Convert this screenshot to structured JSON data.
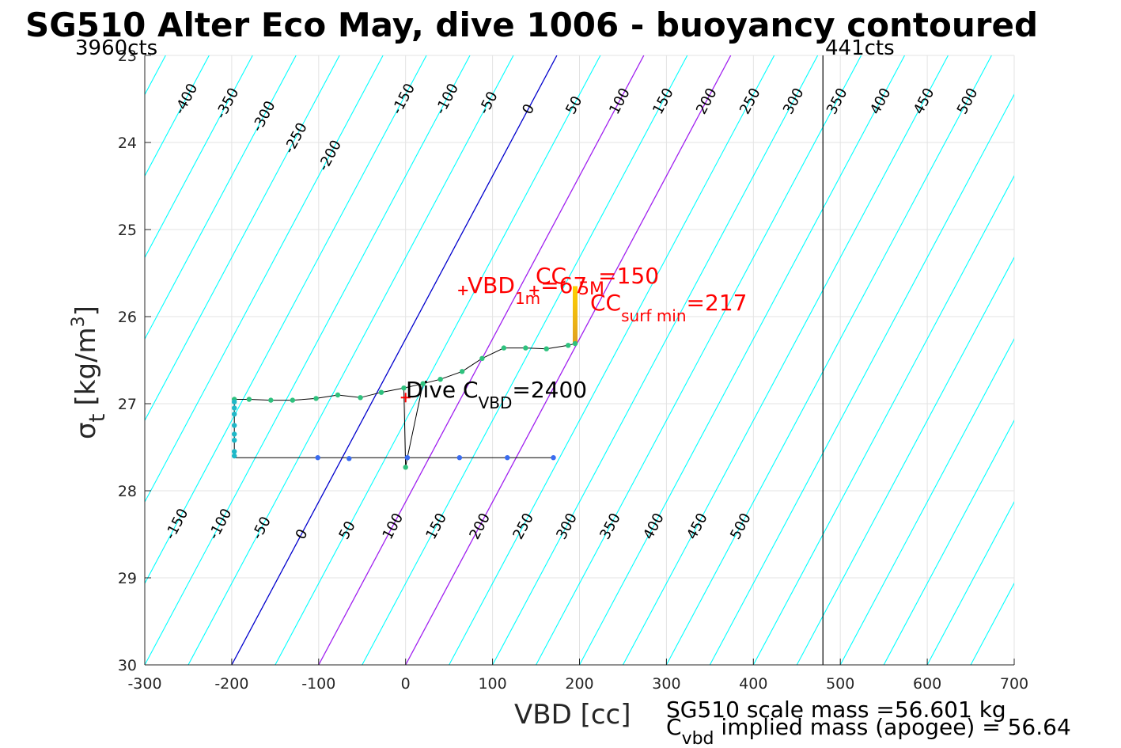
{
  "chart_data": {
    "type": "scatter",
    "title": "SG510 Alter Eco May, dive 1006 - buoyancy contoured",
    "xlabel": "VBD [cc]",
    "ylabel_symbol": "σ",
    "ylabel_sub": "t",
    "ylabel_unit": "[kg/m",
    "ylabel_sup": "3",
    "ylabel_close": "]",
    "xlim": [
      -300,
      700
    ],
    "ylim": [
      23,
      30
    ],
    "y_reversed": true,
    "grid": true,
    "xticks": [
      "-300",
      "-200",
      "-100",
      "0",
      "100",
      "200",
      "300",
      "400",
      "500",
      "600",
      "700"
    ],
    "yticks": [
      "23",
      "24",
      "25",
      "26",
      "27",
      "28",
      "29",
      "30"
    ],
    "contour_levels": [
      -400,
      -350,
      -300,
      -250,
      -200,
      -150,
      -100,
      -50,
      0,
      50,
      100,
      150,
      200,
      250,
      300,
      350,
      400,
      450,
      500
    ],
    "contour_labels_top": [
      "-400",
      "-350",
      "-300",
      "-250",
      "-200",
      "-150",
      "-100",
      "-50",
      "0",
      "50",
      "100",
      "150",
      "200",
      "250",
      "300",
      "350",
      "400",
      "450",
      "500"
    ],
    "contour_labels_bottom": [
      "-150",
      "-100",
      "-50",
      "0",
      "50",
      "100",
      "150",
      "200",
      "250",
      "300",
      "350",
      "400",
      "450",
      "500"
    ],
    "contour_colors": {
      "default": "#00ffff",
      "zero": "#0000cd",
      "highlight": "#a020f0"
    },
    "highlight_levels": [
      100,
      200
    ],
    "vline_x": 480,
    "left_cts_label": "3960cts",
    "right_cts_label": "441cts",
    "dive_points": [
      {
        "x": -197,
        "y": 26.95
      },
      {
        "x": -180,
        "y": 26.95
      },
      {
        "x": -155,
        "y": 26.96
      },
      {
        "x": -130,
        "y": 26.96
      },
      {
        "x": -103,
        "y": 26.94
      },
      {
        "x": -78,
        "y": 26.9
      },
      {
        "x": -52,
        "y": 26.93
      },
      {
        "x": -28,
        "y": 26.87
      },
      {
        "x": -2,
        "y": 26.82
      },
      {
        "x": 20,
        "y": 26.77
      },
      {
        "x": 40,
        "y": 26.72
      },
      {
        "x": 65,
        "y": 26.63
      },
      {
        "x": 88,
        "y": 26.48
      },
      {
        "x": 113,
        "y": 26.36
      },
      {
        "x": 138,
        "y": 26.36
      },
      {
        "x": 162,
        "y": 26.37
      },
      {
        "x": 187,
        "y": 26.33
      },
      {
        "x": 195,
        "y": 26.31
      }
    ],
    "apogee_points": [
      {
        "x": 0,
        "y": 27.73
      },
      {
        "x": 2,
        "y": 27.62
      }
    ],
    "climb_points": [
      {
        "x": 170,
        "y": 27.62
      },
      {
        "x": 117,
        "y": 27.62
      },
      {
        "x": 62,
        "y": 27.62
      },
      {
        "x": 2,
        "y": 27.62
      },
      {
        "x": -65,
        "y": 27.63
      },
      {
        "x": -101,
        "y": 27.62
      }
    ],
    "bottom_points": [
      {
        "x": -197,
        "y": 26.98
      },
      {
        "x": -197,
        "y": 27.05
      },
      {
        "x": -197,
        "y": 27.12
      },
      {
        "x": -197,
        "y": 27.25
      },
      {
        "x": -197,
        "y": 27.35
      },
      {
        "x": -197,
        "y": 27.42
      },
      {
        "x": -197,
        "y": 27.55
      },
      {
        "x": -197,
        "y": 27.6
      }
    ],
    "surface_bar": {
      "x": 195,
      "y_top": 25.65,
      "y_bottom": 26.3
    },
    "red_markers": [
      {
        "x": 0,
        "y": 26.93
      },
      {
        "x": 66,
        "y": 25.7
      },
      {
        "x": 148,
        "y": 25.7
      }
    ],
    "annotations": {
      "vbd_1m_main": "VBD",
      "vbd_1m_sub": "1m",
      "vbd_1m_tail": "=67",
      "cc_main": "CC",
      "cc_sub": "",
      "cc_tail": "=150",
      "overlap_text": "5M",
      "cc_surf_main": "CC",
      "cc_surf_sub": "surf min",
      "cc_surf_tail": "=217",
      "dive_main": "Dive C",
      "dive_sub": "VBD",
      "dive_tail": "=2400"
    },
    "mass_line1": "SG510 scale mass =56.601 kg",
    "mass_line2_main": "C",
    "mass_line2_sub": "vbd",
    "mass_line2_tail": " implied mass (apogee) = 56.64"
  }
}
